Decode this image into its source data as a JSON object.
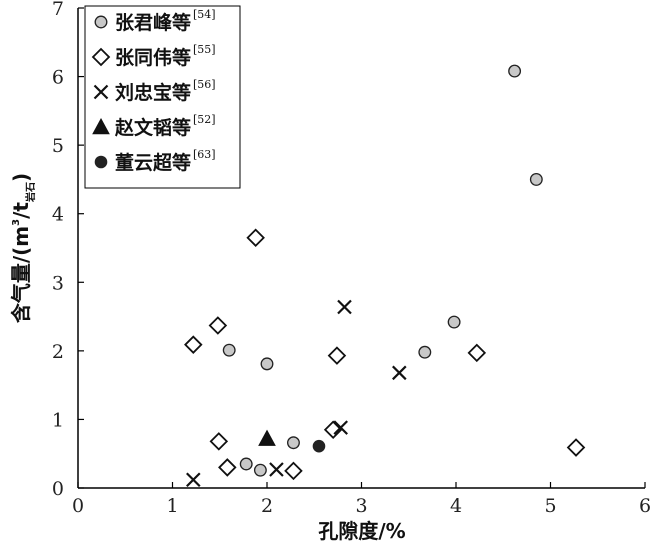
{
  "chart_data": {
    "type": "scatter",
    "xlabel": "孔隙度/%",
    "ylabel_main": "含气量/(m",
    "ylabel_sup": "3",
    "ylabel_mid": "/t",
    "ylabel_sub": "岩石",
    "ylabel_close": ")",
    "xlim": [
      0,
      6
    ],
    "ylim": [
      0,
      7
    ],
    "x_ticks": [
      "0",
      "1",
      "2",
      "3",
      "4",
      "5",
      "6"
    ],
    "y_ticks": [
      "0",
      "1",
      "2",
      "3",
      "4",
      "5",
      "6",
      "7"
    ],
    "legend_position": "top-left",
    "series": [
      {
        "name": "张君峰等",
        "ref": "[54]",
        "marker": "circle-gray",
        "points": [
          [
            1.6,
            2.01
          ],
          [
            2.0,
            1.81
          ],
          [
            1.78,
            0.35
          ],
          [
            1.93,
            0.26
          ],
          [
            2.28,
            0.66
          ],
          [
            3.67,
            1.98
          ],
          [
            3.98,
            2.42
          ],
          [
            4.62,
            6.08
          ],
          [
            4.85,
            4.5
          ]
        ]
      },
      {
        "name": "张同伟等",
        "ref": "[55]",
        "marker": "diamond-open",
        "points": [
          [
            1.22,
            2.09
          ],
          [
            1.48,
            2.37
          ],
          [
            1.88,
            3.65
          ],
          [
            1.49,
            0.68
          ],
          [
            1.58,
            0.3
          ],
          [
            2.28,
            0.25
          ],
          [
            2.7,
            0.85
          ],
          [
            2.74,
            1.93
          ],
          [
            4.22,
            1.97
          ],
          [
            5.27,
            0.59
          ]
        ]
      },
      {
        "name": "刘忠宝等",
        "ref": "[56]",
        "marker": "cross",
        "points": [
          [
            1.22,
            0.12
          ],
          [
            2.1,
            0.27
          ],
          [
            2.78,
            0.88
          ],
          [
            2.82,
            2.64
          ],
          [
            3.4,
            1.68
          ]
        ]
      },
      {
        "name": "赵文韬等",
        "ref": "[52]",
        "marker": "triangle-filled",
        "points": [
          [
            2.0,
            0.72
          ]
        ]
      },
      {
        "name": "董云超等",
        "ref": "[63]",
        "marker": "circle-filled",
        "points": [
          [
            2.55,
            0.61
          ]
        ]
      }
    ]
  }
}
